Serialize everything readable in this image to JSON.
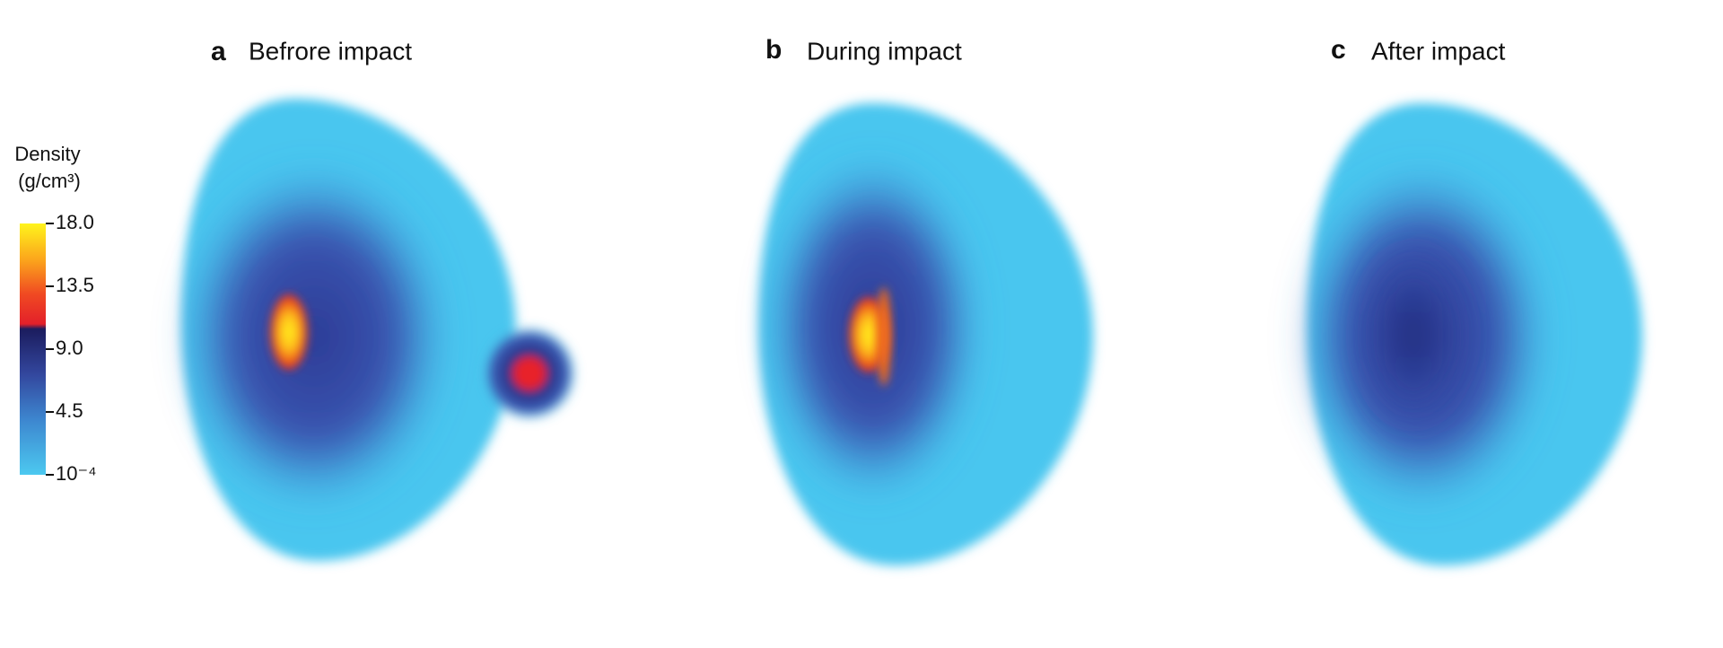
{
  "panels": [
    {
      "letter": "a",
      "title": "Befrore impact"
    },
    {
      "letter": "b",
      "title": "During impact"
    },
    {
      "letter": "c",
      "title": "After impact"
    }
  ],
  "colorbar": {
    "label": "Density",
    "unit": "(g/cm³)",
    "range": [
      0.0001,
      18
    ],
    "ticks": [
      {
        "value": 18,
        "label": "18.0"
      },
      {
        "value": 13.5,
        "label": "13.5"
      },
      {
        "value": 9,
        "label": "9.0"
      },
      4.5,
      {
        "value": 0.0001,
        "label": "10⁻⁴"
      }
    ]
  }
}
